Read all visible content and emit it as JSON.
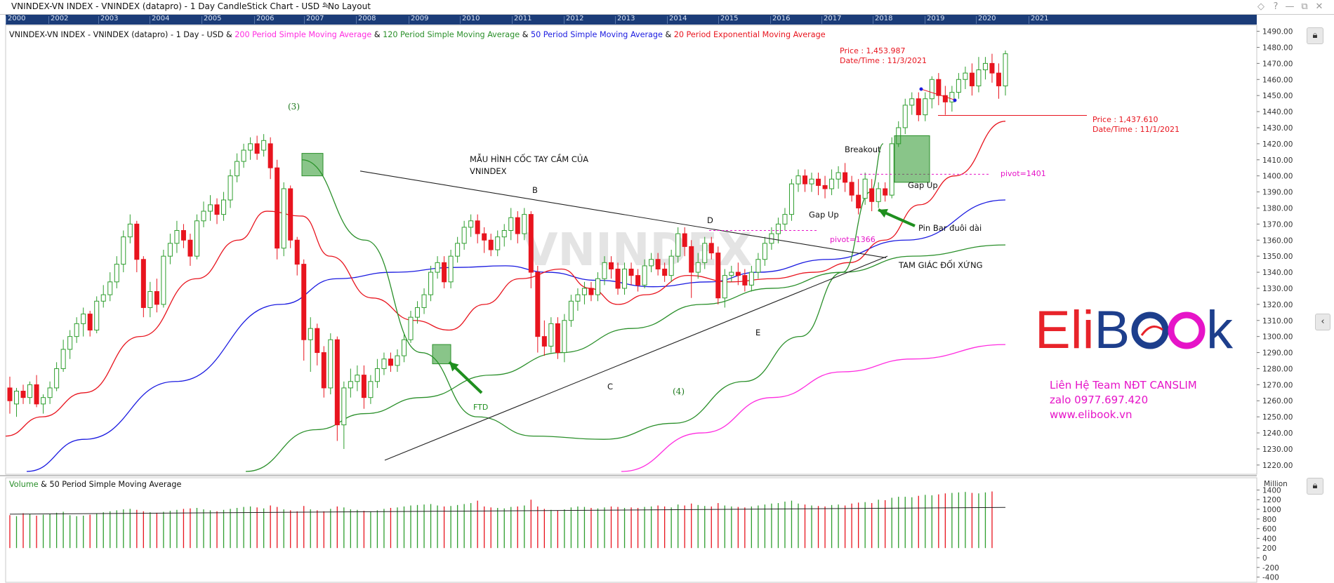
{
  "window": {
    "title": "VNINDEX-VN INDEX - VNINDEX (datapro) - 1 Day CandleStick Chart - USD - No Layout",
    "controls": [
      "◇",
      "?",
      "—",
      "⧉",
      "✕"
    ]
  },
  "year_strip": [
    "2000",
    "2002",
    "2003",
    "2004",
    "2005",
    "2006",
    "2007",
    "2008",
    "2009",
    "2010",
    "2011",
    "2012",
    "2013",
    "2014",
    "2015",
    "2016",
    "2017",
    "2018",
    "2019",
    "2020",
    "2021"
  ],
  "legend": {
    "prefix": "VNINDEX-VN INDEX - VNINDEX (datapro) - 1 Day - USD & ",
    "sma200": "200 Period Simple Moving Average",
    "amp1": " & ",
    "sma120": "120 Period Simple Moving Average",
    "amp2": " & ",
    "sma50": "50 Period Simple Moving Average",
    "amp3": " & ",
    "ema20": "20 Period Exponential Moving Average"
  },
  "volume_legend": {
    "label1": "Volume",
    "label2": " & 50 Period Simple Moving Average",
    "unit": "Million"
  },
  "watermark": "VNINDEX",
  "annotations": {
    "label_3": "(3)",
    "label_4": "(4)",
    "pattern_title_line1": "MẪU HÌNH CỐC TAY CẦM CỦA",
    "pattern_title_line2": "VNINDEX",
    "B": "B",
    "C": "C",
    "D": "D",
    "E": "E",
    "ftd": "FTD",
    "breakout": "Breakout",
    "gap_up_1": "Gap Up",
    "gap_up_2": "Gap Up",
    "pin_bar": "Pin Bar đuôi dài",
    "triangle": "TAM GIÁC ĐỐI XỨNG",
    "pivot_1366": "pivot=1366",
    "pivot_1401": "pivot=1401",
    "price_top": "Price : 1,453.987",
    "date_top": "Date/Time : 11/3/2021",
    "price_right": "Price : 1,437.610",
    "date_right": "Date/Time : 11/1/2021"
  },
  "brand": {
    "logo_part1": "Eli",
    "logo_part2": "B",
    "logo_part3": "k",
    "contact1": "Liên Hệ Team NĐT CANSLIM",
    "contact2": "zalo 0977.697.420",
    "contact3": "www.elibook.vn"
  },
  "colors": {
    "up": "#2e9e2e",
    "down": "#e8141e",
    "sma200": "#ff2ce0",
    "sma120": "#2a8f2a",
    "sma50": "#1a1ae0",
    "ema20": "#e8141e",
    "accent_magenta": "#e614c8",
    "year_strip": "#1b3c78",
    "brand_red": "#e8232a",
    "brand_blue": "#1d3e8c"
  },
  "chart_data": {
    "type": "candlestick",
    "symbol": "VNINDEX",
    "yaxis": {
      "ticks": [
        1220,
        1230,
        1240,
        1250,
        1260,
        1270,
        1280,
        1290,
        1300,
        1310,
        1320,
        1330,
        1340,
        1350,
        1360,
        1370,
        1380,
        1390,
        1400,
        1410,
        1420,
        1430,
        1440,
        1450,
        1460,
        1470,
        1480,
        1490
      ],
      "ylim": [
        1216,
        1492
      ]
    },
    "volume_axis": {
      "ticks": [
        -400,
        -200,
        0,
        200,
        400,
        600,
        800,
        1000,
        1200,
        1400
      ],
      "ylim": [
        -450,
        1450
      ],
      "unit": "Million"
    },
    "candles": [
      [
        1268,
        1260,
        1275,
        1252
      ],
      [
        1258,
        1266,
        1268,
        1250
      ],
      [
        1266,
        1262,
        1270,
        1258
      ],
      [
        1262,
        1270,
        1272,
        1258
      ],
      [
        1270,
        1258,
        1276,
        1256
      ],
      [
        1258,
        1262,
        1264,
        1252
      ],
      [
        1262,
        1268,
        1272,
        1258
      ],
      [
        1268,
        1280,
        1284,
        1266
      ],
      [
        1280,
        1292,
        1298,
        1278
      ],
      [
        1292,
        1300,
        1304,
        1286
      ],
      [
        1300,
        1308,
        1312,
        1296
      ],
      [
        1308,
        1314,
        1318,
        1300
      ],
      [
        1314,
        1304,
        1316,
        1300
      ],
      [
        1304,
        1322,
        1325,
        1302
      ],
      [
        1322,
        1326,
        1332,
        1318
      ],
      [
        1326,
        1334,
        1340,
        1322
      ],
      [
        1334,
        1345,
        1350,
        1330
      ],
      [
        1345,
        1362,
        1366,
        1340
      ],
      [
        1362,
        1370,
        1376,
        1358
      ],
      [
        1370,
        1348,
        1372,
        1340
      ],
      [
        1348,
        1318,
        1350,
        1312
      ],
      [
        1318,
        1328,
        1334,
        1312
      ],
      [
        1328,
        1320,
        1336,
        1315
      ],
      [
        1320,
        1350,
        1354,
        1318
      ],
      [
        1350,
        1358,
        1364,
        1345
      ],
      [
        1358,
        1366,
        1372,
        1352
      ],
      [
        1366,
        1360,
        1370,
        1355
      ],
      [
        1360,
        1350,
        1364,
        1344
      ],
      [
        1350,
        1372,
        1376,
        1348
      ],
      [
        1372,
        1378,
        1384,
        1368
      ],
      [
        1378,
        1382,
        1388,
        1372
      ],
      [
        1382,
        1376,
        1386,
        1370
      ],
      [
        1376,
        1385,
        1390,
        1372
      ],
      [
        1385,
        1400,
        1404,
        1380
      ],
      [
        1400,
        1409,
        1414,
        1396
      ],
      [
        1409,
        1416,
        1420,
        1405
      ],
      [
        1416,
        1420,
        1424,
        1410
      ],
      [
        1420,
        1414,
        1425,
        1410
      ],
      [
        1416,
        1422,
        1426,
        1412
      ],
      [
        1420,
        1405,
        1424,
        1398
      ],
      [
        1405,
        1355,
        1410,
        1348
      ],
      [
        1355,
        1392,
        1396,
        1350
      ],
      [
        1392,
        1360,
        1394,
        1355
      ],
      [
        1360,
        1345,
        1362,
        1338
      ],
      [
        1345,
        1298,
        1348,
        1285
      ],
      [
        1298,
        1305,
        1312,
        1278
      ],
      [
        1305,
        1290,
        1308,
        1282
      ],
      [
        1290,
        1268,
        1294,
        1262
      ],
      [
        1268,
        1298,
        1302,
        1264
      ],
      [
        1298,
        1245,
        1300,
        1235
      ],
      [
        1245,
        1268,
        1272,
        1230
      ],
      [
        1268,
        1272,
        1280,
        1262
      ],
      [
        1272,
        1276,
        1282,
        1266
      ],
      [
        1276,
        1262,
        1282,
        1255
      ],
      [
        1262,
        1272,
        1276,
        1258
      ],
      [
        1272,
        1280,
        1286,
        1268
      ],
      [
        1280,
        1286,
        1290,
        1276
      ],
      [
        1286,
        1282,
        1290,
        1278
      ],
      [
        1282,
        1288,
        1292,
        1278
      ],
      [
        1288,
        1298,
        1302,
        1284
      ],
      [
        1298,
        1312,
        1316,
        1296
      ],
      [
        1312,
        1318,
        1322,
        1308
      ],
      [
        1318,
        1326,
        1330,
        1314
      ],
      [
        1326,
        1340,
        1344,
        1322
      ],
      [
        1340,
        1346,
        1350,
        1336
      ],
      [
        1346,
        1334,
        1350,
        1330
      ],
      [
        1334,
        1350,
        1354,
        1330
      ],
      [
        1350,
        1358,
        1362,
        1346
      ],
      [
        1358,
        1368,
        1372,
        1354
      ],
      [
        1368,
        1372,
        1376,
        1362
      ],
      [
        1372,
        1364,
        1376,
        1358
      ],
      [
        1364,
        1360,
        1368,
        1352
      ],
      [
        1360,
        1354,
        1364,
        1350
      ],
      [
        1354,
        1362,
        1366,
        1350
      ],
      [
        1362,
        1366,
        1370,
        1356
      ],
      [
        1366,
        1374,
        1380,
        1360
      ],
      [
        1374,
        1364,
        1378,
        1358
      ],
      [
        1364,
        1376,
        1380,
        1360
      ],
      [
        1376,
        1340,
        1378,
        1330
      ],
      [
        1340,
        1300,
        1344,
        1290
      ],
      [
        1300,
        1294,
        1310,
        1288
      ],
      [
        1294,
        1308,
        1312,
        1290
      ],
      [
        1308,
        1290,
        1312,
        1286
      ],
      [
        1290,
        1310,
        1314,
        1284
      ],
      [
        1310,
        1322,
        1326,
        1306
      ],
      [
        1322,
        1326,
        1330,
        1316
      ],
      [
        1326,
        1330,
        1334,
        1320
      ],
      [
        1330,
        1326,
        1334,
        1322
      ],
      [
        1326,
        1336,
        1340,
        1322
      ],
      [
        1336,
        1346,
        1350,
        1332
      ],
      [
        1346,
        1342,
        1350,
        1336
      ],
      [
        1342,
        1330,
        1346,
        1326
      ],
      [
        1330,
        1342,
        1346,
        1326
      ],
      [
        1342,
        1338,
        1346,
        1332
      ],
      [
        1338,
        1332,
        1342,
        1328
      ],
      [
        1332,
        1344,
        1348,
        1330
      ],
      [
        1344,
        1348,
        1352,
        1340
      ],
      [
        1348,
        1342,
        1352,
        1338
      ],
      [
        1342,
        1338,
        1346,
        1334
      ],
      [
        1338,
        1350,
        1354,
        1334
      ],
      [
        1350,
        1364,
        1368,
        1346
      ],
      [
        1364,
        1356,
        1368,
        1350
      ],
      [
        1356,
        1340,
        1360,
        1324
      ],
      [
        1340,
        1346,
        1352,
        1336
      ],
      [
        1346,
        1358,
        1362,
        1342
      ],
      [
        1358,
        1352,
        1362,
        1348
      ],
      [
        1352,
        1324,
        1356,
        1320
      ],
      [
        1324,
        1338,
        1342,
        1318
      ],
      [
        1338,
        1340,
        1344,
        1334
      ],
      [
        1340,
        1338,
        1346,
        1332
      ],
      [
        1338,
        1332,
        1342,
        1328
      ],
      [
        1332,
        1340,
        1344,
        1328
      ],
      [
        1340,
        1348,
        1352,
        1336
      ],
      [
        1348,
        1358,
        1362,
        1344
      ],
      [
        1358,
        1364,
        1368,
        1354
      ],
      [
        1364,
        1370,
        1374,
        1358
      ],
      [
        1370,
        1376,
        1380,
        1366
      ],
      [
        1376,
        1395,
        1398,
        1372
      ],
      [
        1395,
        1400,
        1404,
        1390
      ],
      [
        1400,
        1395,
        1404,
        1390
      ],
      [
        1395,
        1398,
        1402,
        1390
      ],
      [
        1398,
        1394,
        1402,
        1388
      ],
      [
        1394,
        1392,
        1400,
        1386
      ],
      [
        1392,
        1398,
        1404,
        1388
      ],
      [
        1398,
        1402,
        1406,
        1392
      ],
      [
        1402,
        1396,
        1408,
        1390
      ],
      [
        1396,
        1388,
        1400,
        1384
      ],
      [
        1388,
        1380,
        1398,
        1376
      ],
      [
        1386,
        1398,
        1402,
        1382
      ],
      [
        1392,
        1384,
        1398,
        1378
      ],
      [
        1384,
        1392,
        1396,
        1380
      ],
      [
        1392,
        1388,
        1396,
        1384
      ],
      [
        1388,
        1420,
        1424,
        1386
      ],
      [
        1420,
        1430,
        1434,
        1418
      ],
      [
        1430,
        1444,
        1448,
        1426
      ],
      [
        1444,
        1448,
        1452,
        1438
      ],
      [
        1448,
        1438,
        1452,
        1434
      ],
      [
        1438,
        1448,
        1452,
        1434
      ],
      [
        1448,
        1460,
        1462,
        1442
      ],
      [
        1460,
        1450,
        1464,
        1444
      ],
      [
        1450,
        1446,
        1456,
        1438
      ],
      [
        1446,
        1452,
        1456,
        1440
      ],
      [
        1452,
        1460,
        1464,
        1448
      ],
      [
        1460,
        1464,
        1468,
        1454
      ],
      [
        1464,
        1456,
        1470,
        1450
      ],
      [
        1456,
        1466,
        1474,
        1452
      ],
      [
        1466,
        1470,
        1474,
        1460
      ],
      [
        1470,
        1464,
        1476,
        1458
      ],
      [
        1464,
        1456,
        1470,
        1448
      ],
      [
        1456,
        1476,
        1478,
        1450
      ]
    ],
    "volume": [
      880,
      860,
      920,
      900,
      870,
      890,
      910,
      930,
      950,
      880,
      860,
      870,
      890,
      920,
      940,
      960,
      980,
      1000,
      1010,
      990,
      960,
      940,
      930,
      950,
      970,
      990,
      1010,
      1020,
      1030,
      1000,
      980,
      960,
      990,
      1010,
      1030,
      1050,
      1060,
      1040,
      1020,
      1080,
      1050,
      1000,
      980,
      960,
      1070,
      1000,
      980,
      960,
      1010,
      1060,
      1040,
      1000,
      990,
      970,
      960,
      980,
      1010,
      1030,
      1040,
      1060,
      1080,
      1090,
      1100,
      1110,
      1080,
      1060,
      1070,
      1090,
      1110,
      1130,
      1180,
      1060,
      1040,
      1030,
      1020,
      1050,
      1060,
      1080,
      1200,
      1060,
      1010,
      990,
      980,
      1000,
      1040,
      1060,
      1050,
      1030,
      1020,
      1040,
      1060,
      1050,
      1030,
      1040,
      1030,
      1050,
      1060,
      1080,
      1060,
      1040,
      1100,
      1080,
      1120,
      1090,
      1070,
      1060,
      1130,
      1080,
      1060,
      1050,
      1040,
      1060,
      1080,
      1100,
      1120,
      1130,
      1160,
      1180,
      1120,
      1100,
      1080,
      1070,
      1060,
      1090,
      1100,
      1080,
      1120,
      1140,
      1150,
      1130,
      1200,
      1190,
      1240,
      1260,
      1260,
      1250,
      1280,
      1300,
      1290,
      1310,
      1330,
      1340,
      1350,
      1360,
      1340,
      1330,
      1350,
      1370
    ],
    "volume_sma50": [
      900,
      1040
    ],
    "series": [
      {
        "name": "20 Period Exponential Moving Average",
        "color": "#e8141e"
      },
      {
        "name": "50 Period Simple Moving Average",
        "color": "#1a1ae0"
      },
      {
        "name": "120 Period Simple Moving Average",
        "color": "#2a8f2a"
      },
      {
        "name": "200 Period Simple Moving Average",
        "color": "#ff2ce0"
      }
    ],
    "pivots": [
      1366,
      1401
    ],
    "price_labels": [
      1453.987,
      1437.61
    ]
  }
}
